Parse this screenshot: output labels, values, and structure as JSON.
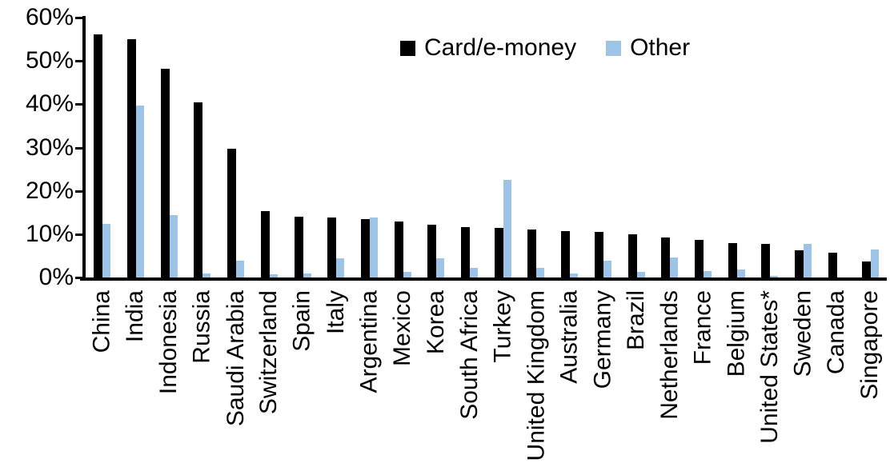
{
  "chart_data": {
    "type": "bar",
    "title": "",
    "xlabel": "",
    "ylabel": "",
    "grid": false,
    "legend_position": "top-center",
    "ylim": [
      0,
      60
    ],
    "ytick_step": 10,
    "ytick_labels": [
      "0%",
      "10%",
      "20%",
      "30%",
      "40%",
      "50%",
      "60%"
    ],
    "categories": [
      "China",
      "India",
      "Indonesia",
      "Russia",
      "Saudi Arabia",
      "Switzerland",
      "Spain",
      "Italy",
      "Argentina",
      "Mexico",
      "Korea",
      "South Africa",
      "Turkey",
      "United Kingdom",
      "Australia",
      "Germany",
      "Brazil",
      "Netherlands",
      "France",
      "Belgium",
      "United States*",
      "Sweden",
      "Canada",
      "Singapore"
    ],
    "series": [
      {
        "name": "Card/e-money",
        "color": "#000000",
        "values": [
          56.2,
          55.0,
          48.2,
          40.4,
          29.8,
          15.4,
          14.0,
          13.9,
          13.4,
          12.9,
          12.2,
          11.7,
          11.5,
          11.0,
          10.7,
          10.5,
          10.0,
          9.2,
          8.6,
          8.0,
          7.7,
          6.3,
          5.7,
          3.6
        ]
      },
      {
        "name": "Other",
        "color": "#9DC3E6",
        "values": [
          12.3,
          39.7,
          14.4,
          1.0,
          3.8,
          0.8,
          1.0,
          4.5,
          13.8,
          1.3,
          4.5,
          2.3,
          22.5,
          2.3,
          1.0,
          3.9,
          1.2,
          4.7,
          1.4,
          1.9,
          0.3,
          7.8,
          0.0,
          6.4
        ]
      }
    ]
  },
  "legend": {
    "card_label": "Card/e-money",
    "other_label": "Other"
  }
}
